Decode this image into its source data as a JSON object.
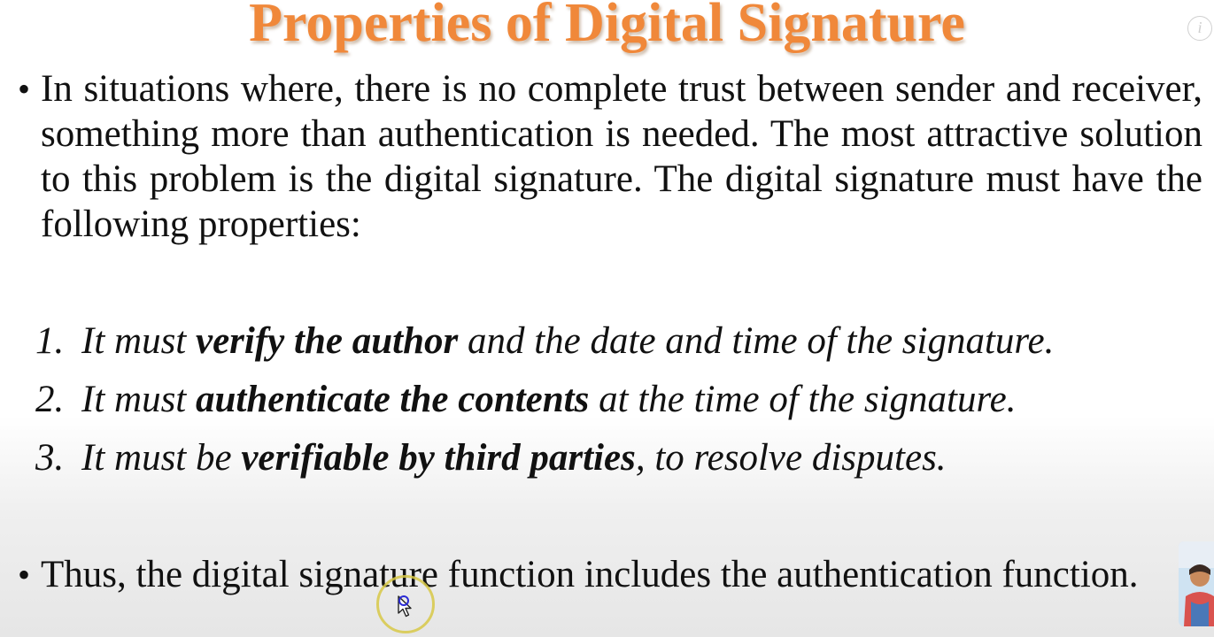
{
  "slide": {
    "title": "Properties of Digital Signature",
    "intro": "In situations where, there is no complete trust between sender and receiver, something more than authentication is needed. The most attractive solution to this problem is the digital signature. The digital signature must have the following properties:",
    "properties": [
      {
        "number": "1.",
        "before": "It must ",
        "bold": "verify the author",
        "after": " and the date and time of the signature."
      },
      {
        "number": "2.",
        "before": "It must ",
        "bold": "authenticate the contents",
        "after": " at the time of the signature."
      },
      {
        "number": "3.",
        "before": "It must be ",
        "bold": "verifiable by third parties",
        "after": ", to resolve disputes."
      }
    ],
    "conclusion": "Thus, the digital signature function includes the authentication function.",
    "bullet_symbol": "•"
  },
  "overlay": {
    "info_label": "i",
    "info_icon": "info-icon",
    "cursor_icon": "mouse-pointer-icon",
    "presenter_icon": "presenter-thumbnail"
  },
  "colors": {
    "title": "#f0883a",
    "text": "#111111",
    "cursor_ring": "#d7c846",
    "background": "#ffffff"
  }
}
